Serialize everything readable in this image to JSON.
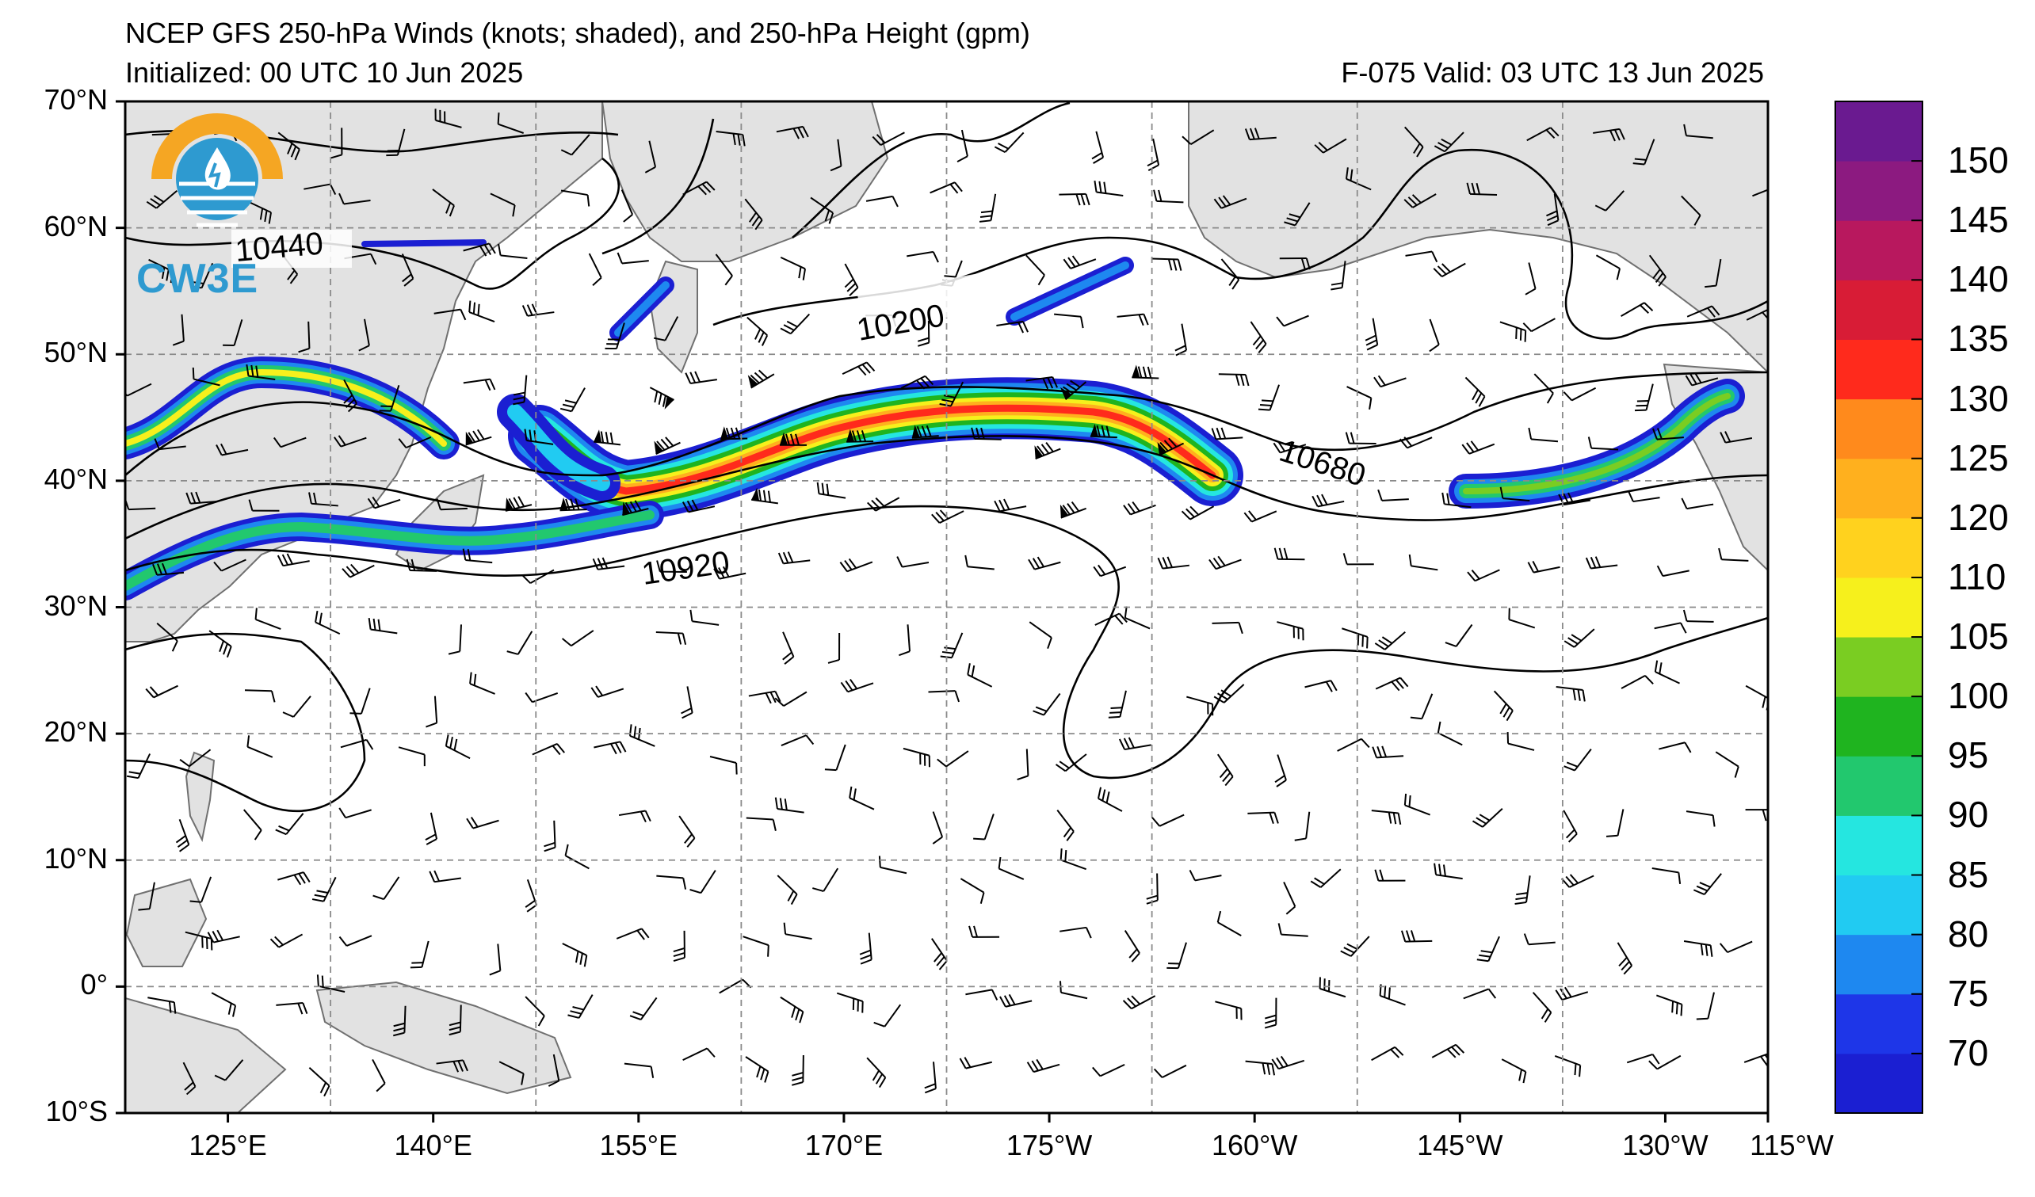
{
  "header": {
    "title": "NCEP GFS 250-hPa Winds (knots; shaded), and 250-hPa Height (gpm)",
    "initialized": "Initialized: 00 UTC 10 Jun 2025",
    "valid": "F-075  Valid: 03 UTC 13 Jun 2025"
  },
  "logo": {
    "text": "CW3E",
    "colors": [
      "#f5a623",
      "#2e9ad0"
    ]
  },
  "map": {
    "lat_labels": [
      "70°N",
      "60°N",
      "50°N",
      "40°N",
      "30°N",
      "20°N",
      "10°N",
      "0°",
      "10°S"
    ],
    "lon_labels": [
      "125°E",
      "140°E",
      "155°E",
      "170°E",
      "175°W",
      "160°W",
      "145°W",
      "130°W",
      "115°W"
    ],
    "contour_labels": [
      "10440",
      "10200",
      "10680",
      "10920"
    ],
    "land_color": "#e2e2e2",
    "coast_color": "#707070",
    "grid_style": "dashed gray"
  },
  "colorbar": {
    "levels": [
      70,
      75,
      80,
      85,
      90,
      95,
      100,
      105,
      110,
      120,
      125,
      130,
      135,
      140,
      145,
      150
    ],
    "tick_labels": [
      "150",
      "145",
      "140",
      "135",
      "130",
      "125",
      "120",
      "110",
      "105",
      "100",
      "95",
      "90",
      "85",
      "80",
      "75",
      "70"
    ],
    "colors": [
      "#1b1fd2",
      "#1e36e8",
      "#1e88f0",
      "#21cbf2",
      "#25e6e0",
      "#22c86e",
      "#1fb41f",
      "#7acd22",
      "#f6f01c",
      "#ffd21e",
      "#ffb01e",
      "#ff8a1c",
      "#ff2a1c",
      "#d81c36",
      "#b8185e",
      "#8c1a80",
      "#6a1a90"
    ]
  }
}
